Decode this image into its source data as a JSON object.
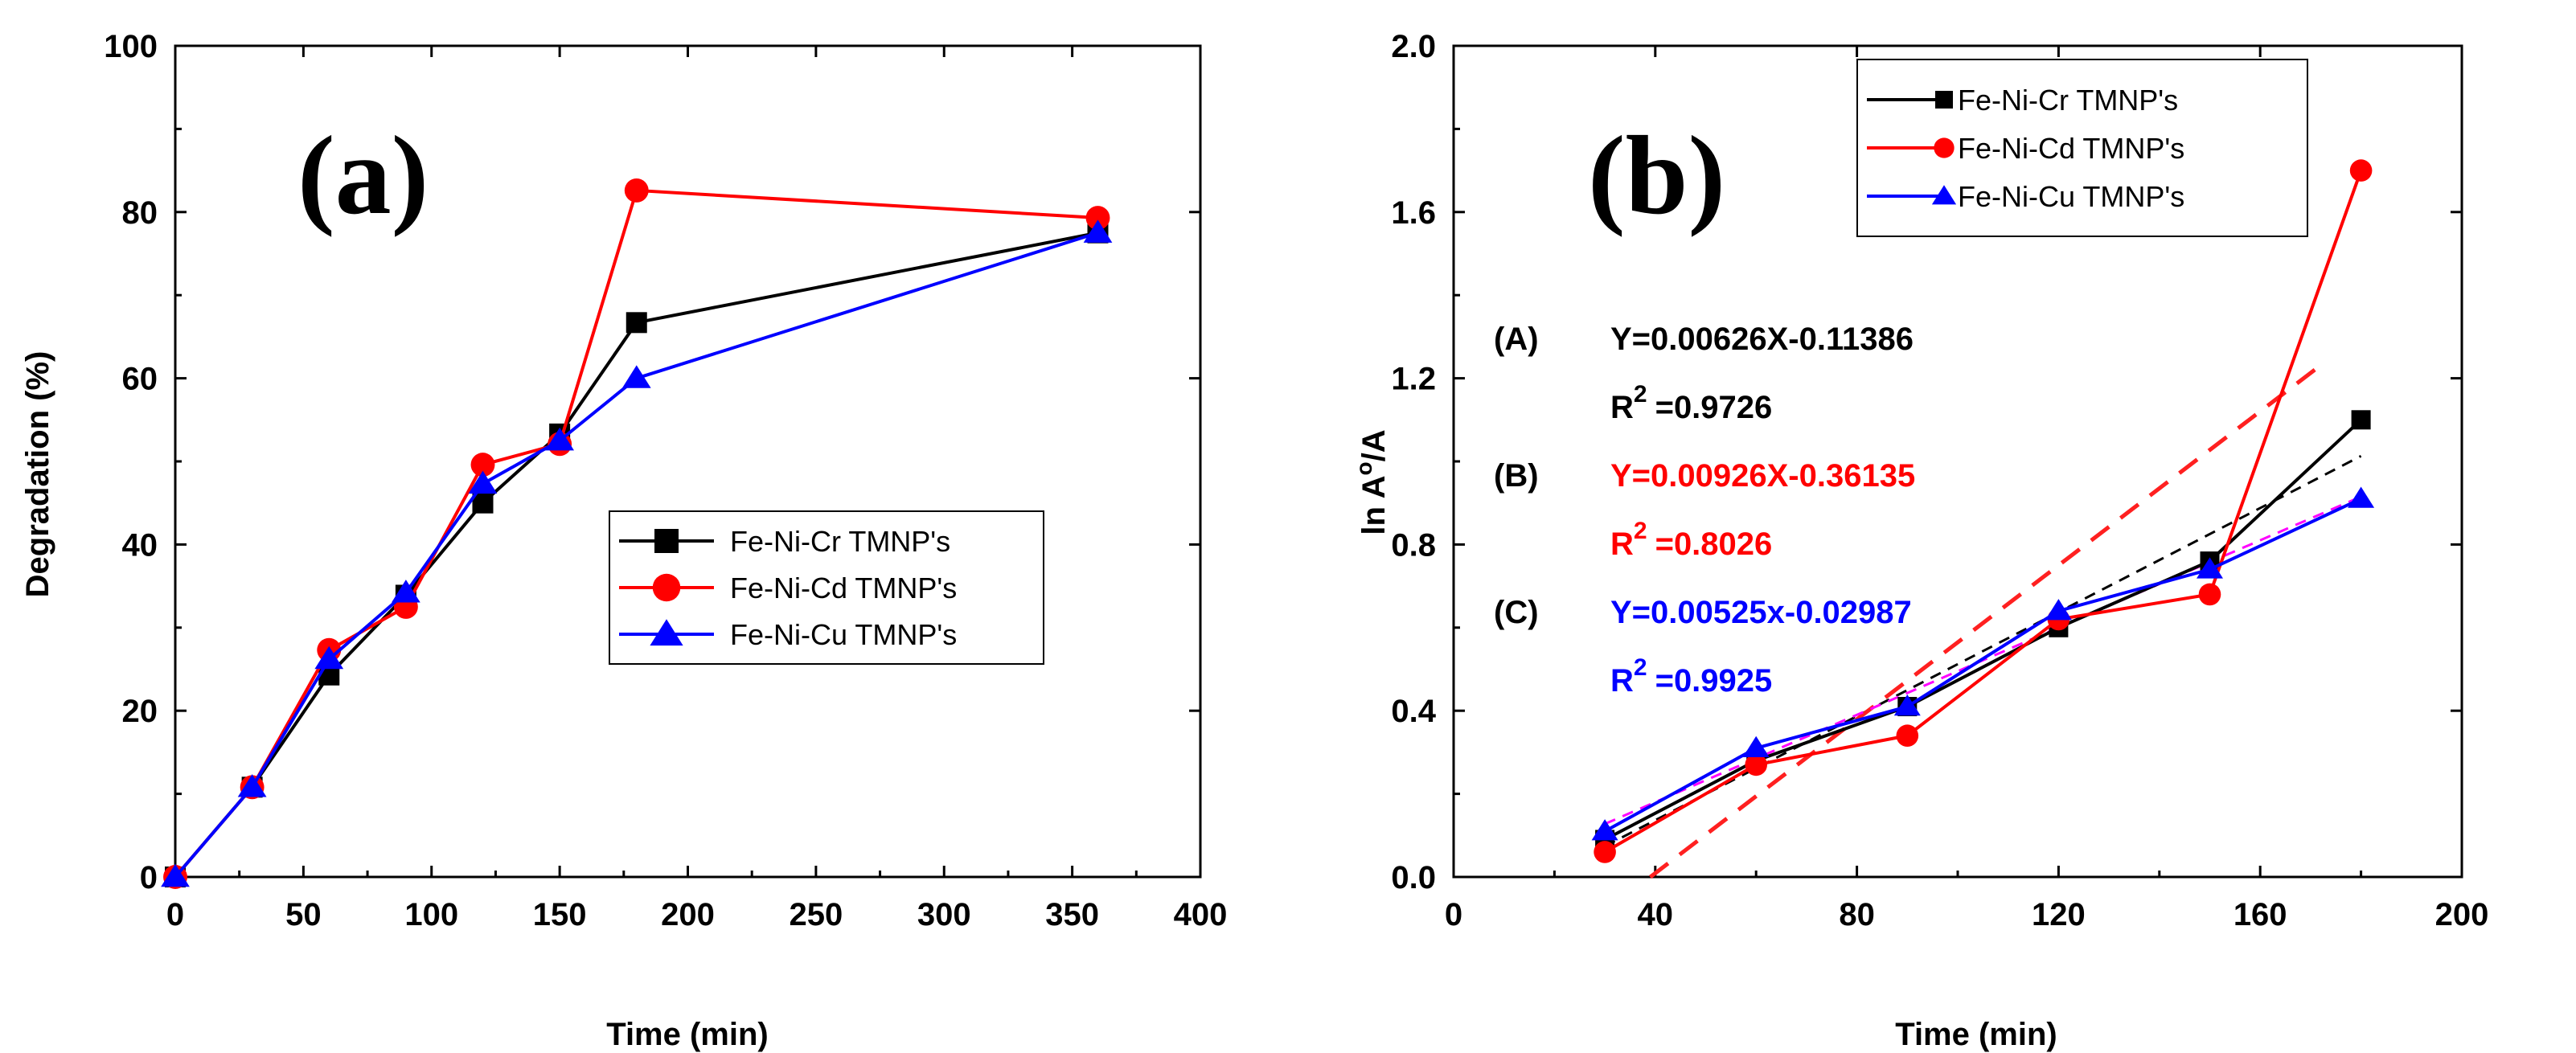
{
  "chart_data": [
    {
      "panel_label": "(a)",
      "type": "line",
      "xlabel": "Time (min)",
      "ylabel": "Degradation (%)",
      "xlim": [
        0,
        400
      ],
      "ylim": [
        0,
        100
      ],
      "xticks": [
        0,
        50,
        100,
        150,
        200,
        250,
        300,
        350,
        400
      ],
      "yticks": [
        0,
        20,
        40,
        60,
        80,
        100
      ],
      "x": [
        0,
        30,
        60,
        90,
        120,
        150,
        180,
        360
      ],
      "legend_position": "center-right",
      "series": [
        {
          "name": "Fe-Ni-Cr TMNP's",
          "color": "#000000",
          "marker": "square",
          "values": [
            0,
            10.8,
            24.3,
            33.9,
            45.0,
            53.3,
            66.7,
            77.5
          ]
        },
        {
          "name": "Fe-Ni-Cd TMNP's",
          "color": "#ff0000",
          "marker": "circle",
          "values": [
            0,
            10.8,
            27.3,
            32.5,
            49.6,
            52.1,
            82.6,
            79.3
          ]
        },
        {
          "name": "Fe-Ni-Cu TMNP's",
          "color": "#0000ff",
          "marker": "triangle",
          "values": [
            0,
            10.8,
            26.2,
            34.2,
            47.3,
            52.5,
            60.0,
            77.5
          ]
        }
      ]
    },
    {
      "panel_label": "(b)",
      "type": "line",
      "xlabel": "Time (min)",
      "ylabel_main": "ln A",
      "ylabel_sup": "o",
      "ylabel_tail": "/A",
      "xlim": [
        0,
        200
      ],
      "ylim": [
        0,
        2.0
      ],
      "xticks": [
        0,
        40,
        80,
        120,
        160,
        200
      ],
      "yticks": [
        "0.0",
        "0.4",
        "0.8",
        "1.2",
        "1.6",
        "2.0"
      ],
      "x": [
        30,
        60,
        90,
        120,
        150,
        180
      ],
      "legend_position": "top",
      "series": [
        {
          "name": "Fe-Ni-Cr TMNP's",
          "color": "#000000",
          "marker": "square",
          "values": [
            0.09,
            0.28,
            0.41,
            0.6,
            0.76,
            1.1
          ]
        },
        {
          "name": "Fe-Ni-Cd TMNP's",
          "color": "#ff0000",
          "marker": "circle",
          "values": [
            0.06,
            0.27,
            0.34,
            0.62,
            0.68,
            1.7
          ]
        },
        {
          "name": "Fe-Ni-Cu TMNP's",
          "color": "#0000ff",
          "marker": "triangle",
          "values": [
            0.11,
            0.31,
            0.41,
            0.64,
            0.74,
            0.91
          ]
        }
      ],
      "fits": [
        {
          "label": "(A)",
          "equation": "Y=0.00626X-0.11386",
          "r2_base": "R",
          "r2_sup": "2",
          "r2_value": "=0.9726",
          "color": "#000000",
          "slope": 0.00626,
          "intercept": -0.11386,
          "x_range": [
            30,
            180
          ],
          "line_color": "#000000"
        },
        {
          "label": "(B)",
          "equation": "Y=0.00926X-0.36135",
          "r2_base": "R",
          "r2_sup": "2",
          "r2_value": "=0.8026",
          "color": "#ff0000",
          "slope": 0.00926,
          "intercept": -0.36135,
          "x_range": [
            39,
            172
          ],
          "line_color": "#ff2020"
        },
        {
          "label": "(C)",
          "equation": "Y=0.00525x-0.02987",
          "r2_base": "R",
          "r2_sup": "2",
          "r2_value": "=0.9925",
          "color": "#0000ff",
          "slope": 0.00525,
          "intercept": -0.02987,
          "x_range": [
            30,
            180
          ],
          "line_color": "#ff00ff"
        }
      ]
    }
  ]
}
